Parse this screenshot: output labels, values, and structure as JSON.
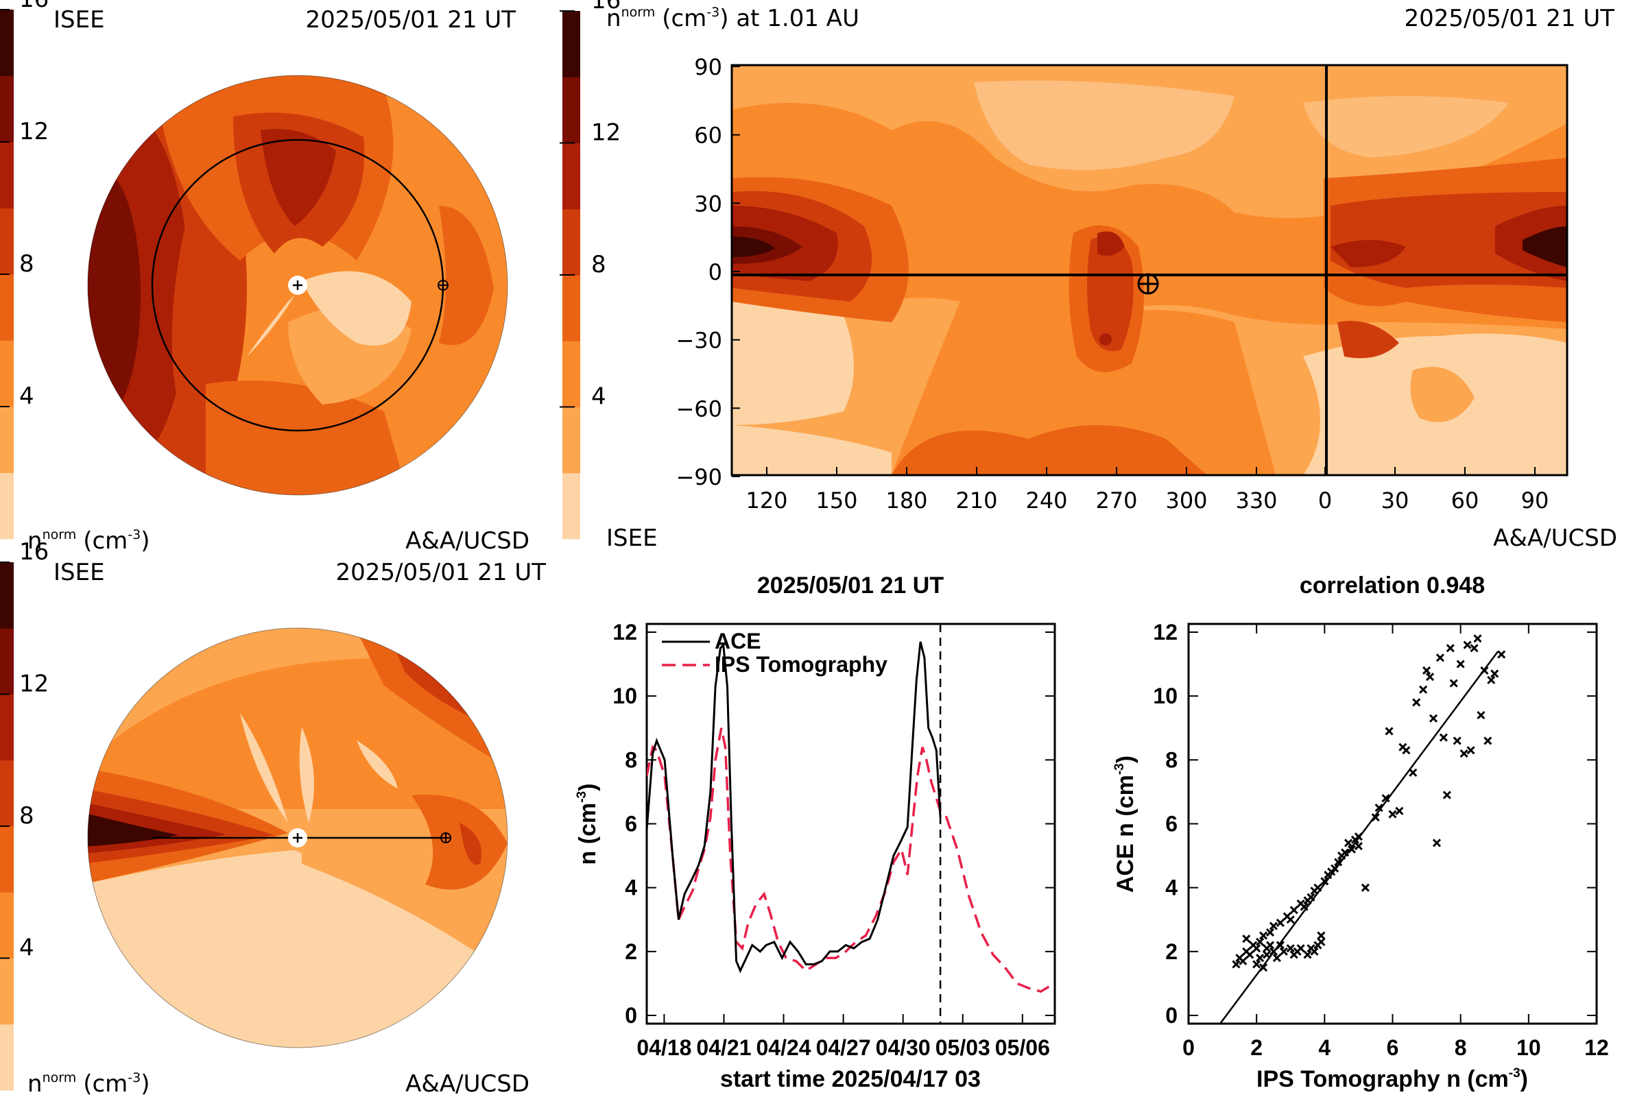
{
  "colors": {
    "bands": [
      "#fdd4a6",
      "#fca650",
      "#f98a2c",
      "#ea6314",
      "#cf3c0c",
      "#aa1f06",
      "#7a0e02",
      "#3c0500"
    ],
    "ace_line": "#000000",
    "ips_line": "#e8204a",
    "background": "#ffffff"
  },
  "colorbar": {
    "ticks": [
      "4",
      "8",
      "12",
      "16"
    ],
    "unit_label": "n",
    "unit_sup": "norm",
    "unit_tail": "(cm",
    "unit_exp": "-3",
    "unit_close": ")"
  },
  "polar_top": {
    "org": "ISEE",
    "timestamp": "2025/05/01 21 UT",
    "credit": "A&A/UCSD",
    "view": "ecliptic"
  },
  "polar_bottom": {
    "org": "ISEE",
    "timestamp": "2025/05/01 21 UT",
    "credit": "A&A/UCSD",
    "view": "meridional"
  },
  "synoptic_map": {
    "title_prefix": "n",
    "title_sup": "norm",
    "title_unit": "(cm",
    "title_exp": "-3",
    "title_suffix": ") at 1.01 AU",
    "timestamp": "2025/05/01 21 UT",
    "org": "ISEE",
    "credit": "A&A/UCSD",
    "y_ticks": [
      "90",
      "60",
      "30",
      "0",
      "−30",
      "−60",
      "−90"
    ],
    "x_ticks": [
      "120",
      "150",
      "180",
      "210",
      "240",
      "270",
      "300",
      "330",
      "0",
      "30",
      "60",
      "90"
    ],
    "earth_marker": "⊕"
  },
  "chart_data": [
    {
      "type": "line",
      "title": "2025/05/01 21 UT",
      "xlabel": "start time 2025/04/17 03",
      "ylabel": "n (cm",
      "ylabel_exp": "-3",
      "ylabel_close": ")",
      "xlim": [
        0,
        20.5
      ],
      "ylim": [
        0,
        12
      ],
      "x_ticks": [
        {
          "x": 0.875,
          "label": "04/18"
        },
        {
          "x": 3.875,
          "label": "04/21"
        },
        {
          "x": 6.875,
          "label": "04/24"
        },
        {
          "x": 9.875,
          "label": "04/27"
        },
        {
          "x": 12.875,
          "label": "04/30"
        },
        {
          "x": 15.875,
          "label": "05/03"
        },
        {
          "x": 18.875,
          "label": "05/06"
        }
      ],
      "y_ticks": [
        0,
        2,
        4,
        6,
        8,
        10,
        12
      ],
      "now_line_x": 14.75,
      "legend_position": "top-left",
      "series": [
        {
          "name": "ACE",
          "x": [
            0,
            0.3,
            0.5,
            0.9,
            1.3,
            1.6,
            1.9,
            2.3,
            2.6,
            2.9,
            3.2,
            3.45,
            3.7,
            3.85,
            4.05,
            4.25,
            4.5,
            4.7,
            5.0,
            5.3,
            5.7,
            6.0,
            6.4,
            6.8,
            7.2,
            7.6,
            8.0,
            8.4,
            8.8,
            9.2,
            9.6,
            10.0,
            10.4,
            10.8,
            11.2,
            11.6,
            12.0,
            12.4,
            12.8,
            13.1,
            13.35,
            13.55,
            13.75,
            13.95,
            14.15,
            14.35,
            14.55,
            14.75
          ],
          "values": [
            5.8,
            8.2,
            8.6,
            8.0,
            5.0,
            3.0,
            3.8,
            4.3,
            4.7,
            5.3,
            7.0,
            10.3,
            11.5,
            11.6,
            10.3,
            6.0,
            1.7,
            1.4,
            1.8,
            2.2,
            2.0,
            2.2,
            2.3,
            1.8,
            2.3,
            2.0,
            1.6,
            1.6,
            1.7,
            2.0,
            2.0,
            2.2,
            2.1,
            2.3,
            2.4,
            3.0,
            4.0,
            5.0,
            5.5,
            5.9,
            8.5,
            10.5,
            11.7,
            11.2,
            9.0,
            8.7,
            8.3,
            6.2
          ]
        },
        {
          "name": "IPS Tomography",
          "x": [
            0,
            0.3,
            0.5,
            0.9,
            1.3,
            1.6,
            1.9,
            2.3,
            2.6,
            2.9,
            3.2,
            3.45,
            3.75,
            3.95,
            4.2,
            4.5,
            4.8,
            5.1,
            5.5,
            5.9,
            6.2,
            6.6,
            7.0,
            7.5,
            8.0,
            8.5,
            9.0,
            9.5,
            10.0,
            10.5,
            11.0,
            11.5,
            12.0,
            12.4,
            12.8,
            13.1,
            13.35,
            13.6,
            13.85,
            14.05,
            14.3,
            14.5,
            14.75,
            15.0,
            15.6,
            16.2,
            16.8,
            17.4,
            18.0,
            18.6,
            19.2,
            19.8,
            20.2
          ],
          "values": [
            7.5,
            8.4,
            8.3,
            7.5,
            5.0,
            3.0,
            3.4,
            3.9,
            4.6,
            5.2,
            6.2,
            8.0,
            9.0,
            8.4,
            5.0,
            2.3,
            2.1,
            2.9,
            3.5,
            3.8,
            3.2,
            2.3,
            1.8,
            1.7,
            1.4,
            1.6,
            1.8,
            1.8,
            2.0,
            2.3,
            2.5,
            3.1,
            3.9,
            4.8,
            5.2,
            4.4,
            6.0,
            7.5,
            8.4,
            8.0,
            7.3,
            6.9,
            6.4,
            6.3,
            5.2,
            3.7,
            2.6,
            1.9,
            1.5,
            1.0,
            0.85,
            0.75,
            0.9
          ]
        }
      ]
    },
    {
      "type": "scatter",
      "title": "correlation 0.948",
      "xlabel": "IPS Tomography n (cm",
      "xlabel_exp": "-3",
      "xlabel_close": ")",
      "ylabel": "ACE n (cm",
      "ylabel_exp": "-3",
      "ylabel_close": ")",
      "xlim": [
        0,
        12
      ],
      "ylim": [
        0,
        12
      ],
      "x_ticks": [
        0,
        2,
        4,
        6,
        8,
        10,
        12
      ],
      "y_ticks": [
        0,
        2,
        4,
        6,
        8,
        10,
        12
      ],
      "fit_line": {
        "x": [
          0.9,
          9.1
        ],
        "y": [
          -0.3,
          11.4
        ]
      },
      "points": [
        [
          1.4,
          1.6
        ],
        [
          1.5,
          1.8
        ],
        [
          1.6,
          1.7
        ],
        [
          1.7,
          2.0
        ],
        [
          1.7,
          2.4
        ],
        [
          1.8,
          1.9
        ],
        [
          1.9,
          2.2
        ],
        [
          2.0,
          2.1
        ],
        [
          2.0,
          1.6
        ],
        [
          2.1,
          2.3
        ],
        [
          2.1,
          1.8
        ],
        [
          2.2,
          2.5
        ],
        [
          2.2,
          1.5
        ],
        [
          2.3,
          2.1
        ],
        [
          2.3,
          1.9
        ],
        [
          2.4,
          2.2
        ],
        [
          2.4,
          2.6
        ],
        [
          2.5,
          2.0
        ],
        [
          2.5,
          2.8
        ],
        [
          2.6,
          1.8
        ],
        [
          2.7,
          2.9
        ],
        [
          2.7,
          2.2
        ],
        [
          2.8,
          2.0
        ],
        [
          2.9,
          3.1
        ],
        [
          3.0,
          2.1
        ],
        [
          3.0,
          3.0
        ],
        [
          3.1,
          1.9
        ],
        [
          3.1,
          3.3
        ],
        [
          3.2,
          2.0
        ],
        [
          3.3,
          3.5
        ],
        [
          3.3,
          2.1
        ],
        [
          3.4,
          3.4
        ],
        [
          3.5,
          1.9
        ],
        [
          3.5,
          3.6
        ],
        [
          3.6,
          2.1
        ],
        [
          3.6,
          3.7
        ],
        [
          3.7,
          2.0
        ],
        [
          3.7,
          3.9
        ],
        [
          3.8,
          2.2
        ],
        [
          3.8,
          4.0
        ],
        [
          3.9,
          2.3
        ],
        [
          3.9,
          2.5
        ],
        [
          4.0,
          4.2
        ],
        [
          4.1,
          4.4
        ],
        [
          4.2,
          4.5
        ],
        [
          4.3,
          4.6
        ],
        [
          4.4,
          4.8
        ],
        [
          4.5,
          5.0
        ],
        [
          4.6,
          5.1
        ],
        [
          4.7,
          5.4
        ],
        [
          4.8,
          5.2
        ],
        [
          4.9,
          5.5
        ],
        [
          5.0,
          5.3
        ],
        [
          5.0,
          5.6
        ],
        [
          5.2,
          4.0
        ],
        [
          5.5,
          6.2
        ],
        [
          5.6,
          6.5
        ],
        [
          5.8,
          6.8
        ],
        [
          5.9,
          8.9
        ],
        [
          6.0,
          6.3
        ],
        [
          6.2,
          6.4
        ],
        [
          6.3,
          8.4
        ],
        [
          6.4,
          8.3
        ],
        [
          6.6,
          7.6
        ],
        [
          6.7,
          9.8
        ],
        [
          6.9,
          10.2
        ],
        [
          7.0,
          10.8
        ],
        [
          7.1,
          10.6
        ],
        [
          7.2,
          9.3
        ],
        [
          7.3,
          5.4
        ],
        [
          7.4,
          11.2
        ],
        [
          7.5,
          8.7
        ],
        [
          7.6,
          6.9
        ],
        [
          7.7,
          11.5
        ],
        [
          7.8,
          10.4
        ],
        [
          7.9,
          8.6
        ],
        [
          8.0,
          11.0
        ],
        [
          8.1,
          8.2
        ],
        [
          8.2,
          11.6
        ],
        [
          8.3,
          8.3
        ],
        [
          8.4,
          11.5
        ],
        [
          8.5,
          11.8
        ],
        [
          8.6,
          9.4
        ],
        [
          8.7,
          10.8
        ],
        [
          8.8,
          8.6
        ],
        [
          8.9,
          10.5
        ],
        [
          9.0,
          10.7
        ],
        [
          9.2,
          11.3
        ]
      ]
    }
  ]
}
